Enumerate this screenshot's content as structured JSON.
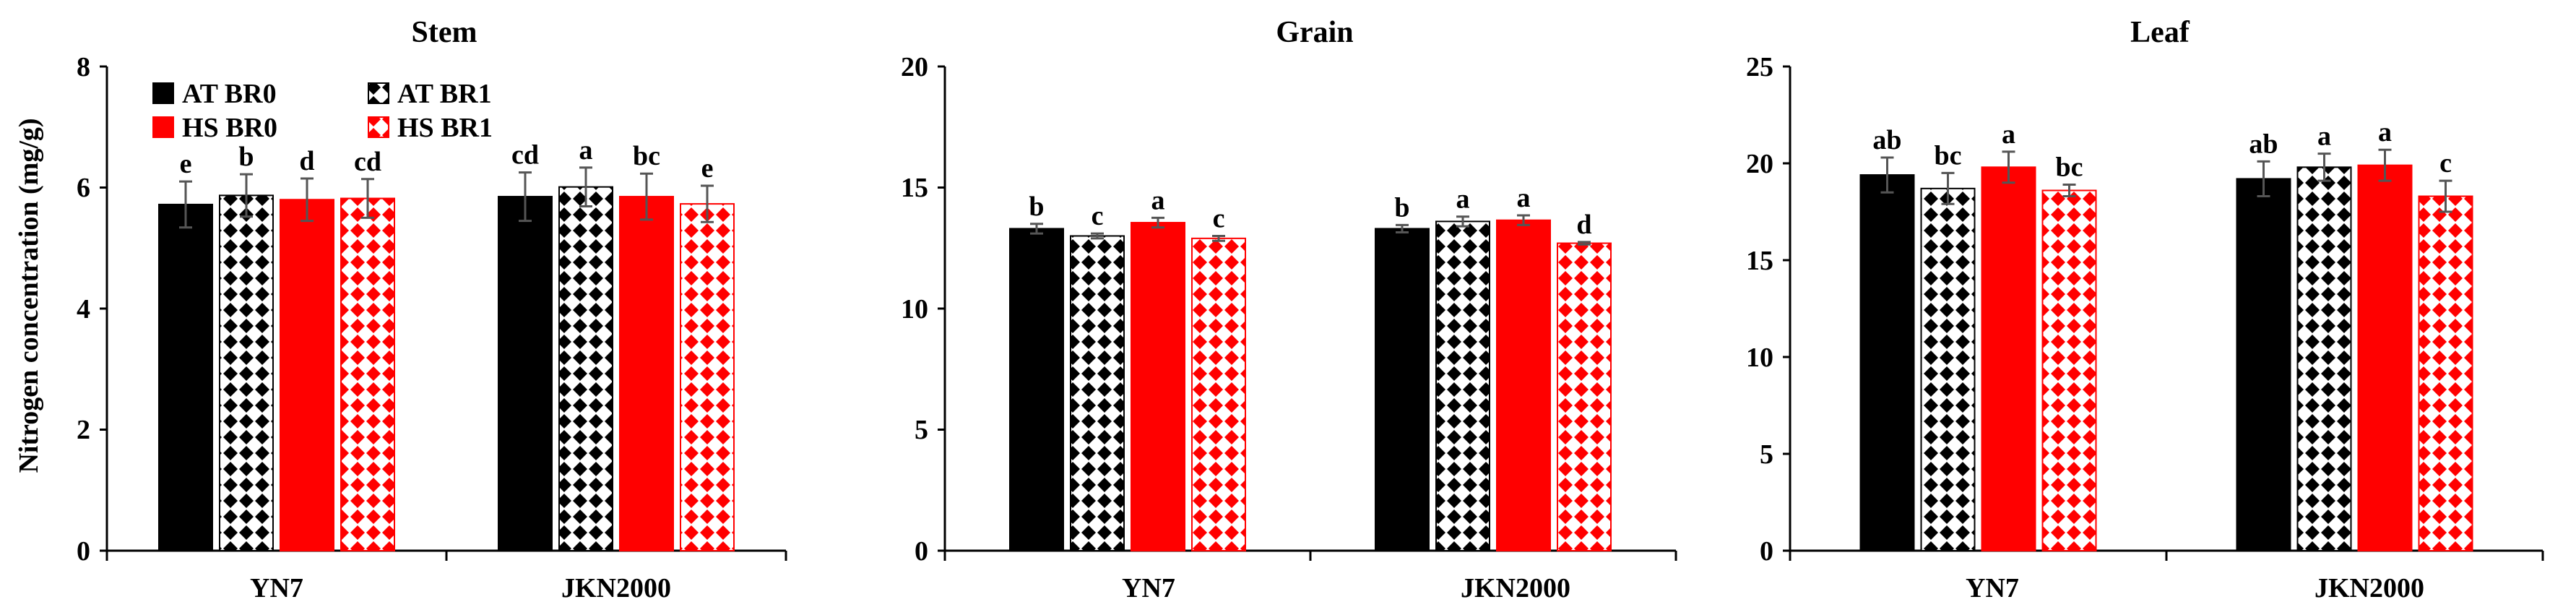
{
  "chart_data": [
    {
      "type": "bar",
      "title": "Stem",
      "ylabel": "Nitrogen concentration (mg/g)",
      "xlabel": "",
      "ylim": [
        0,
        8
      ],
      "yticks": [
        "0",
        "2",
        "4",
        "6",
        "8"
      ],
      "categories": [
        "YN7",
        "JKN2000"
      ],
      "series": [
        {
          "name": "AT BR0",
          "values": [
            5.72,
            5.85
          ],
          "errors": [
            0.38,
            0.4
          ],
          "letters": [
            "e",
            "cd"
          ]
        },
        {
          "name": "AT BR1",
          "values": [
            5.87,
            6.01
          ],
          "errors": [
            0.35,
            0.32
          ],
          "letters": [
            "b",
            "a"
          ]
        },
        {
          "name": "HS BR0",
          "values": [
            5.8,
            5.85
          ],
          "errors": [
            0.35,
            0.38
          ],
          "letters": [
            "d",
            "bc"
          ]
        },
        {
          "name": "HS BR1",
          "values": [
            5.82,
            5.73
          ],
          "errors": [
            0.32,
            0.3
          ],
          "letters": [
            "cd",
            "e"
          ]
        }
      ],
      "legend": [
        "AT BR0",
        "AT BR1",
        "HS BR0",
        "HS BR1"
      ]
    },
    {
      "type": "bar",
      "title": "Grain",
      "ylabel": "",
      "xlabel": "",
      "ylim": [
        0,
        20
      ],
      "yticks": [
        "0",
        "5",
        "10",
        "15",
        "20"
      ],
      "categories": [
        "YN7",
        "JKN2000"
      ],
      "series": [
        {
          "name": "AT BR0",
          "values": [
            13.3,
            13.3
          ],
          "errors": [
            0.2,
            0.15
          ],
          "letters": [
            "b",
            "b"
          ]
        },
        {
          "name": "AT BR1",
          "values": [
            13.0,
            13.6
          ],
          "errors": [
            0.1,
            0.2
          ],
          "letters": [
            "c",
            "a"
          ]
        },
        {
          "name": "HS BR0",
          "values": [
            13.55,
            13.65
          ],
          "errors": [
            0.2,
            0.2
          ],
          "letters": [
            "a",
            "a"
          ]
        },
        {
          "name": "HS BR1",
          "values": [
            12.9,
            12.7
          ],
          "errors": [
            0.1,
            0.05
          ],
          "letters": [
            "c",
            "d"
          ]
        }
      ]
    },
    {
      "type": "bar",
      "title": "Leaf",
      "ylabel": "",
      "xlabel": "",
      "ylim": [
        0,
        25
      ],
      "yticks": [
        "0",
        "5",
        "10",
        "15",
        "20",
        "25"
      ],
      "categories": [
        "YN7",
        "JKN2000"
      ],
      "series": [
        {
          "name": "AT BR0",
          "values": [
            19.4,
            19.2
          ],
          "errors": [
            0.9,
            0.9
          ],
          "letters": [
            "ab",
            "ab"
          ]
        },
        {
          "name": "AT BR1",
          "values": [
            18.7,
            19.8
          ],
          "errors": [
            0.8,
            0.7
          ],
          "letters": [
            "bc",
            "a"
          ]
        },
        {
          "name": "HS BR0",
          "values": [
            19.8,
            19.9
          ],
          "errors": [
            0.8,
            0.8
          ],
          "letters": [
            "a",
            "a"
          ]
        },
        {
          "name": "HS BR1",
          "values": [
            18.6,
            18.3
          ],
          "errors": [
            0.3,
            0.8
          ],
          "letters": [
            "bc",
            "c"
          ]
        }
      ]
    }
  ],
  "colors": {
    "at_br0": "#000000",
    "at_br1_pattern": "#000000",
    "hs_br0": "#ff0000",
    "hs_br1_pattern": "#ff0000",
    "error_bar": "#555555"
  }
}
